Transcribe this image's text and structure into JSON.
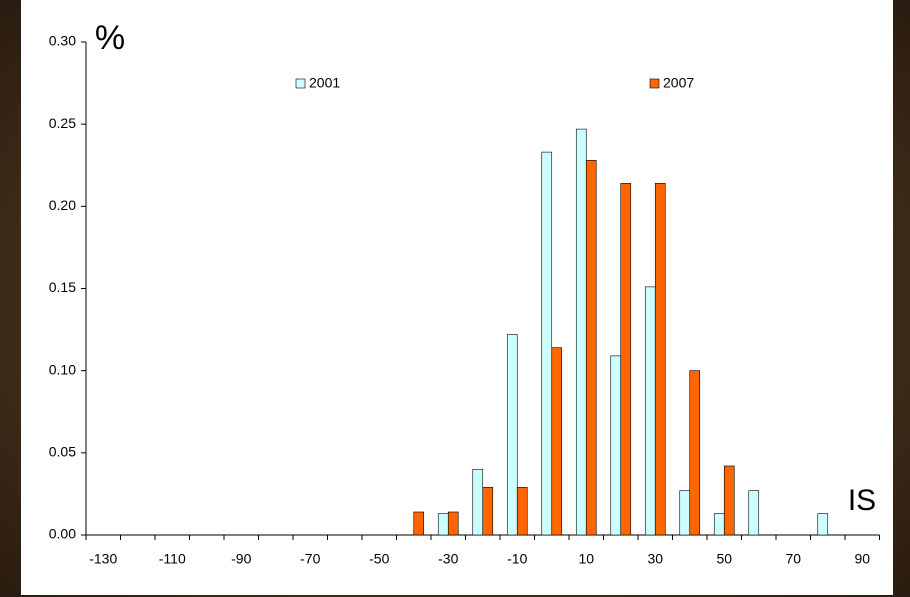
{
  "chart_data": {
    "type": "bar",
    "annotations": [
      "%",
      "IS"
    ],
    "categories": [
      "-130",
      null,
      "-110",
      null,
      "-90",
      null,
      "-70",
      null,
      "-50",
      null,
      "-30",
      null,
      "-10",
      null,
      "10",
      null,
      "30",
      null,
      "50",
      null,
      "70",
      null,
      "90"
    ],
    "series": [
      {
        "name": "2001",
        "color": "#ccffff",
        "values": [
          0,
          0,
          0,
          0,
          0,
          0,
          0,
          0,
          0,
          0,
          0.013,
          0.04,
          0.122,
          0.233,
          0.247,
          0.109,
          0.151,
          0.027,
          0.013,
          0.027,
          0,
          0.013,
          0
        ]
      },
      {
        "name": "2007",
        "color": "#ff6600",
        "values": [
          0,
          0,
          0,
          0,
          0,
          0,
          0,
          0,
          0,
          0.014,
          0.014,
          0.029,
          0.029,
          0.114,
          0.228,
          0.214,
          0.214,
          0.1,
          0.042,
          0,
          0,
          0,
          0
        ]
      }
    ],
    "ylim": [
      0,
      0.3
    ],
    "yticks": [
      {
        "value": 0,
        "label": "0.00"
      },
      {
        "value": 0.05,
        "label": "0.05"
      },
      {
        "value": 0.1,
        "label": "0.10"
      },
      {
        "value": 0.15,
        "label": "0.15"
      },
      {
        "value": 0.2,
        "label": "0.20"
      },
      {
        "value": 0.25,
        "label": "0.25"
      },
      {
        "value": 0.3,
        "label": "0.30"
      }
    ],
    "grid": false
  }
}
